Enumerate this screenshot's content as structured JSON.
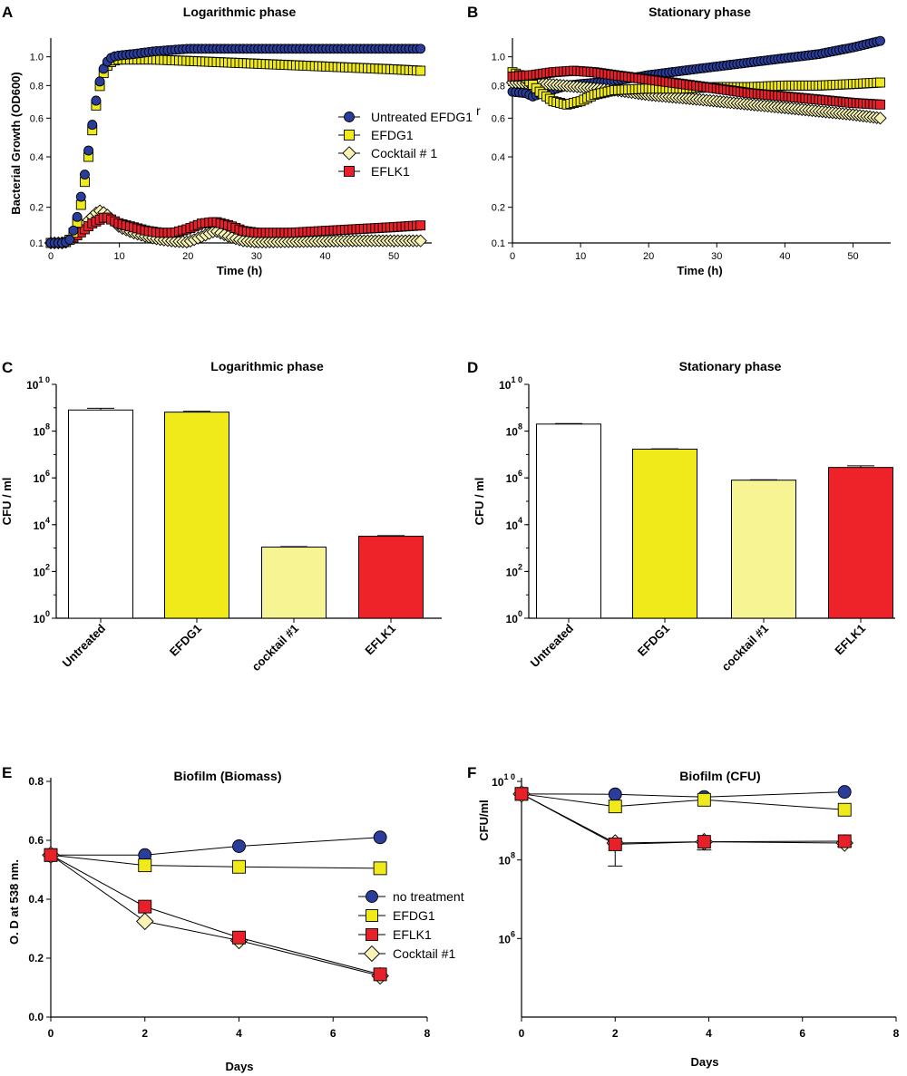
{
  "chart_data": [
    {
      "panel": "A",
      "type": "scatter",
      "title": "Logarithmic phase",
      "xlabel": "Time (h)",
      "ylabel": "Bacterial Growth (OD600)",
      "xlim": [
        0,
        55
      ],
      "xticks": [
        0,
        10,
        20,
        30,
        40,
        50
      ],
      "ylim": [
        0.1,
        1.1
      ],
      "yticks": [
        0.1,
        0.2,
        0.4,
        0.6,
        0.8,
        1.0
      ],
      "yscale": "sqrt",
      "legend": "right-middle",
      "series": [
        {
          "name": "Untreated EFDG1",
          "superscript": "r",
          "marker": "circle",
          "color": "#2b3d9b",
          "points": [
            [
              0,
              0.1
            ],
            [
              2,
              0.1
            ],
            [
              3,
              0.11
            ],
            [
              4,
              0.18
            ],
            [
              4.5,
              0.25
            ],
            [
              5,
              0.33
            ],
            [
              5.5,
              0.43
            ],
            [
              6,
              0.55
            ],
            [
              6.5,
              0.68
            ],
            [
              7,
              0.8
            ],
            [
              7.5,
              0.89
            ],
            [
              8,
              0.95
            ],
            [
              8.5,
              0.98
            ],
            [
              9,
              1.0
            ],
            [
              10,
              1.01
            ],
            [
              12,
              1.02
            ],
            [
              15,
              1.04
            ],
            [
              20,
              1.06
            ],
            [
              25,
              1.06
            ],
            [
              30,
              1.06
            ],
            [
              35,
              1.06
            ],
            [
              40,
              1.06
            ],
            [
              45,
              1.06
            ],
            [
              50,
              1.06
            ],
            [
              54,
              1.06
            ]
          ]
        },
        {
          "name": "EFDG1",
          "marker": "square",
          "color": "#f0ea1a",
          "points": [
            [
              0,
              0.1
            ],
            [
              2,
              0.1
            ],
            [
              3,
              0.11
            ],
            [
              4,
              0.16
            ],
            [
              4.5,
              0.22
            ],
            [
              5,
              0.3
            ],
            [
              5.5,
              0.4
            ],
            [
              6,
              0.52
            ],
            [
              6.5,
              0.65
            ],
            [
              7,
              0.77
            ],
            [
              7.5,
              0.86
            ],
            [
              8,
              0.92
            ],
            [
              8.5,
              0.95
            ],
            [
              9,
              0.97
            ],
            [
              10,
              0.98
            ],
            [
              12,
              0.98
            ],
            [
              15,
              0.98
            ],
            [
              20,
              0.97
            ],
            [
              25,
              0.96
            ],
            [
              30,
              0.95
            ],
            [
              35,
              0.94
            ],
            [
              40,
              0.93
            ],
            [
              45,
              0.92
            ],
            [
              50,
              0.91
            ],
            [
              54,
              0.9
            ]
          ]
        },
        {
          "name": "Cocktail # 1",
          "marker": "diamond",
          "color": "#f6f3b4",
          "points": [
            [
              0,
              0.1
            ],
            [
              2,
              0.1
            ],
            [
              3,
              0.11
            ],
            [
              4,
              0.13
            ],
            [
              5,
              0.15
            ],
            [
              6,
              0.17
            ],
            [
              7,
              0.19
            ],
            [
              8,
              0.18
            ],
            [
              9,
              0.16
            ],
            [
              10,
              0.14
            ],
            [
              12,
              0.125
            ],
            [
              14,
              0.115
            ],
            [
              16,
              0.108
            ],
            [
              18,
              0.104
            ],
            [
              20,
              0.102
            ],
            [
              22,
              0.115
            ],
            [
              24,
              0.13
            ],
            [
              26,
              0.115
            ],
            [
              28,
              0.105
            ],
            [
              30,
              0.102
            ],
            [
              35,
              0.103
            ],
            [
              40,
              0.104
            ],
            [
              45,
              0.105
            ],
            [
              50,
              0.105
            ],
            [
              54,
              0.105
            ]
          ]
        },
        {
          "name": "EFLK1",
          "marker": "square",
          "color": "#e8202a",
          "points": [
            [
              0,
              0.1
            ],
            [
              2,
              0.1
            ],
            [
              3,
              0.11
            ],
            [
              4,
              0.12
            ],
            [
              5,
              0.135
            ],
            [
              6,
              0.15
            ],
            [
              7,
              0.16
            ],
            [
              8,
              0.17
            ],
            [
              9,
              0.16
            ],
            [
              10,
              0.15
            ],
            [
              12,
              0.14
            ],
            [
              14,
              0.13
            ],
            [
              16,
              0.125
            ],
            [
              18,
              0.125
            ],
            [
              20,
              0.135
            ],
            [
              22,
              0.15
            ],
            [
              24,
              0.155
            ],
            [
              26,
              0.145
            ],
            [
              28,
              0.13
            ],
            [
              30,
              0.125
            ],
            [
              35,
              0.125
            ],
            [
              40,
              0.13
            ],
            [
              45,
              0.135
            ],
            [
              50,
              0.14
            ],
            [
              54,
              0.145
            ]
          ]
        }
      ]
    },
    {
      "panel": "B",
      "type": "scatter",
      "title": "Stationary phase",
      "xlabel": "Time (h)",
      "ylabel": "",
      "xlim": [
        0,
        55
      ],
      "xticks": [
        0,
        10,
        20,
        30,
        40,
        50
      ],
      "ylim": [
        0.1,
        1.1
      ],
      "yticks": [
        0.1,
        0.2,
        0.4,
        0.6,
        0.8,
        1.0
      ],
      "yscale": "sqrt",
      "series": [
        {
          "name": "Untreated EFDG1r",
          "marker": "circle",
          "color": "#2b3d9b",
          "points": [
            [
              0,
              0.76
            ],
            [
              2,
              0.75
            ],
            [
              3,
              0.73
            ],
            [
              5,
              0.76
            ],
            [
              8,
              0.8
            ],
            [
              10,
              0.81
            ],
            [
              15,
              0.83
            ],
            [
              20,
              0.87
            ],
            [
              25,
              0.9
            ],
            [
              30,
              0.93
            ],
            [
              35,
              0.96
            ],
            [
              40,
              0.99
            ],
            [
              45,
              1.02
            ],
            [
              50,
              1.07
            ],
            [
              54,
              1.12
            ]
          ]
        },
        {
          "name": "EFDG1",
          "marker": "square",
          "color": "#f0ea1a",
          "points": [
            [
              0,
              0.89
            ],
            [
              2,
              0.85
            ],
            [
              4,
              0.76
            ],
            [
              6,
              0.7
            ],
            [
              8,
              0.68
            ],
            [
              10,
              0.7
            ],
            [
              12,
              0.74
            ],
            [
              15,
              0.77
            ],
            [
              20,
              0.78
            ],
            [
              25,
              0.78
            ],
            [
              30,
              0.79
            ],
            [
              35,
              0.79
            ],
            [
              40,
              0.8
            ],
            [
              45,
              0.8
            ],
            [
              50,
              0.81
            ],
            [
              54,
              0.82
            ]
          ]
        },
        {
          "name": "Cocktail # 1",
          "marker": "diamond",
          "color": "#f6f3b4",
          "points": [
            [
              0,
              0.82
            ],
            [
              5,
              0.81
            ],
            [
              10,
              0.79
            ],
            [
              15,
              0.77
            ],
            [
              20,
              0.74
            ],
            [
              25,
              0.72
            ],
            [
              30,
              0.7
            ],
            [
              35,
              0.68
            ],
            [
              40,
              0.66
            ],
            [
              45,
              0.64
            ],
            [
              50,
              0.62
            ],
            [
              54,
              0.6
            ]
          ]
        },
        {
          "name": "EFLK1",
          "marker": "square",
          "color": "#e8202a",
          "points": [
            [
              0,
              0.86
            ],
            [
              3,
              0.87
            ],
            [
              6,
              0.89
            ],
            [
              9,
              0.9
            ],
            [
              12,
              0.89
            ],
            [
              15,
              0.87
            ],
            [
              20,
              0.84
            ],
            [
              25,
              0.81
            ],
            [
              30,
              0.78
            ],
            [
              35,
              0.75
            ],
            [
              40,
              0.73
            ],
            [
              45,
              0.71
            ],
            [
              50,
              0.69
            ],
            [
              54,
              0.68
            ]
          ]
        }
      ]
    },
    {
      "panel": "C",
      "type": "bar",
      "title": "Logarithmic phase",
      "ylabel": "CFU / ml",
      "yscale": "log",
      "ylim": [
        1,
        10000000000
      ],
      "ytick_labels": [
        {
          "base": "10",
          "exp": "1 0"
        },
        {
          "base": "10",
          "exp": "8"
        },
        {
          "base": "10",
          "exp": "6"
        },
        {
          "base": "10",
          "exp": "4"
        },
        {
          "base": "10",
          "exp": "2"
        },
        {
          "base": "10",
          "exp": "0"
        }
      ],
      "categories": [
        "Untreated",
        "EFDG1",
        "cocktail #1",
        "EFLK1"
      ],
      "values": [
        800000000,
        650000000,
        1100,
        3200
      ],
      "errors_upper": [
        950000000,
        700000000,
        1150,
        3400
      ],
      "colors": [
        "#ffffff",
        "#f0ea1a",
        "#f6f493",
        "#ee2329"
      ]
    },
    {
      "panel": "D",
      "type": "bar",
      "title": "Stationary phase",
      "ylabel": "CFU / ml",
      "yscale": "log",
      "ylim": [
        1,
        10000000000
      ],
      "ytick_labels": [
        {
          "base": "10",
          "exp": "1 0"
        },
        {
          "base": "10",
          "exp": "8"
        },
        {
          "base": "10",
          "exp": "6"
        },
        {
          "base": "10",
          "exp": "4"
        },
        {
          "base": "10",
          "exp": "2"
        },
        {
          "base": "10",
          "exp": "0"
        }
      ],
      "categories": [
        "Untreated",
        "EFDG1",
        "cocktail #1",
        "EFLK1"
      ],
      "values": [
        200000000,
        17000000,
        800000,
        2800000
      ],
      "errors_upper": [
        210000000,
        17500000,
        830000,
        3300000
      ],
      "colors": [
        "#ffffff",
        "#f0ea1a",
        "#f6f493",
        "#ee2329"
      ]
    },
    {
      "panel": "E",
      "type": "line",
      "title": "Biofilm (Biomass)",
      "xlabel": "Days",
      "ylabel": "O. D at 538 nm.",
      "xlim": [
        0,
        8
      ],
      "xticks": [
        0,
        2,
        4,
        6,
        8
      ],
      "ylim": [
        0,
        0.8
      ],
      "yticks": [
        "0.0",
        "0.2",
        "0.4",
        "0.6",
        "0.8"
      ],
      "legend": "right-middle",
      "x": [
        0,
        2,
        4,
        7
      ],
      "series": [
        {
          "name": "no treatment",
          "marker": "circle",
          "color": "#2b3d9b",
          "values": [
            0.55,
            0.55,
            0.58,
            0.61
          ]
        },
        {
          "name": "EFDG1",
          "marker": "square",
          "color": "#f0ea1a",
          "values": [
            0.55,
            0.515,
            0.51,
            0.505
          ]
        },
        {
          "name": "EFLK1",
          "marker": "square",
          "color": "#e8202a",
          "values": [
            0.55,
            0.375,
            0.27,
            0.145
          ]
        },
        {
          "name": "Cocktail #1",
          "marker": "diamond",
          "color": "#f6f3b4",
          "values": [
            0.55,
            0.325,
            0.26,
            0.14
          ]
        }
      ]
    },
    {
      "panel": "F",
      "type": "line",
      "title": "Biofilm (CFU)",
      "xlabel": "Days",
      "ylabel": "CFU/ml",
      "yscale": "log",
      "xlim": [
        0,
        8
      ],
      "xticks": [
        0,
        2,
        4,
        6,
        8
      ],
      "ylim": [
        10000,
        10000000000
      ],
      "ytick_labels": [
        {
          "base": "10",
          "exp": "1 0"
        },
        {
          "base": "10",
          "exp": "8"
        },
        {
          "base": "10",
          "exp": "6"
        }
      ],
      "x": [
        0,
        2,
        3.9,
        6.9
      ],
      "series": [
        {
          "name": "no treatment",
          "marker": "circle",
          "color": "#2b3d9b",
          "values": [
            4800000000,
            4700000000,
            4000000000,
            5400000000
          ]
        },
        {
          "name": "EFDG1",
          "marker": "square",
          "color": "#f0ea1a",
          "values": [
            4800000000,
            2300000000,
            3400000000,
            1900000000
          ]
        },
        {
          "name": "EFLK1",
          "marker": "square",
          "color": "#e8202a",
          "values": [
            4800000000,
            250000000,
            290000000,
            300000000
          ],
          "err_low": [
            null,
            70000000,
            180000000,
            220000000
          ]
        },
        {
          "name": "Cocktail #1",
          "marker": "diamond",
          "color": "#f6f3b4",
          "values": [
            4800000000,
            270000000,
            290000000,
            270000000
          ]
        }
      ]
    }
  ]
}
